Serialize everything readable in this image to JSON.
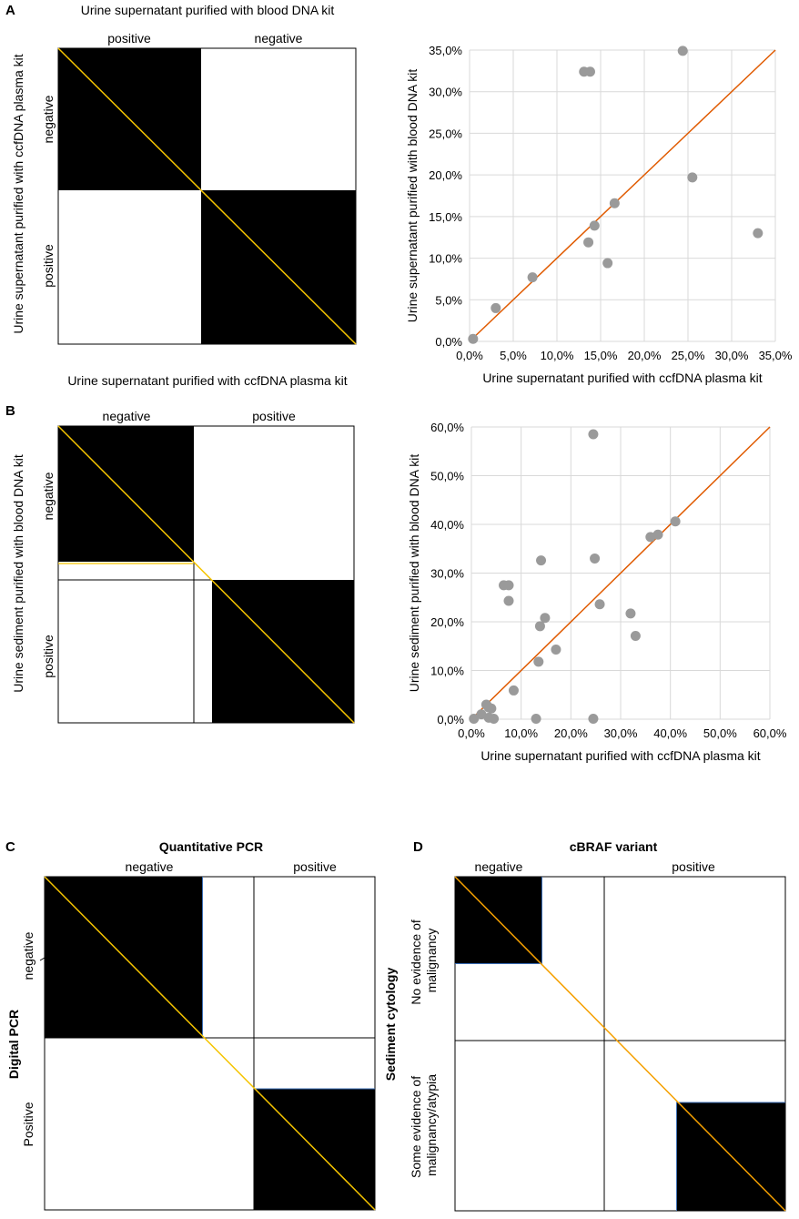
{
  "panels": {
    "A": {
      "letter": "A",
      "mosaic": {
        "title": "Urine supernatant purified with blood DNA kit",
        "col_labels": [
          "positive",
          "negative"
        ],
        "row_labels": [
          "negative",
          "positive"
        ],
        "y_axis_label": "Urine supernatant purified with ccfDNA plasma kit",
        "x_caption": "Urine supernatant purified with ccfDNA plasma kit"
      }
    },
    "B": {
      "letter": "B",
      "mosaic": {
        "col_labels": [
          "negative",
          "positive"
        ],
        "row_labels": [
          "negative",
          "positive"
        ],
        "y_axis_label": "Urine sediment purified with blood DNA kit"
      }
    },
    "C": {
      "letter": "C",
      "mosaic": {
        "title": "Quantitative PCR",
        "col_labels": [
          "negative",
          "positive"
        ],
        "row_labels": [
          "negative",
          "Positive"
        ],
        "y_axis_label": "Digital PCR"
      }
    },
    "D": {
      "letter": "D",
      "mosaic": {
        "title": "cBRAF variant",
        "col_labels": [
          "negative",
          "positive"
        ],
        "row_labels": [
          "No evidence of|malignancy",
          "Some evidence of|malignancy/atypia"
        ],
        "y_axis_label": "Sediment cytology"
      }
    }
  },
  "colors": {
    "fill": "#000000",
    "diagonal_mosaic": "#f5c400",
    "diagonal_scatter": "#e05a00",
    "points": "#9a9a9a",
    "grid": "#d9d9d9",
    "blue_edge": "#3a6db5"
  },
  "chart_data": [
    {
      "type": "scatter",
      "id": "A-scatter",
      "xlabel": "Urine supernatant purified with ccfDNA plasma kit",
      "ylabel": "Urine supernatant purified with blood DNA kit",
      "xlim": [
        0,
        35
      ],
      "ylim": [
        0,
        35
      ],
      "ticks": [
        0,
        5,
        10,
        15,
        20,
        25,
        30,
        35
      ],
      "tick_labels": [
        "0,0%",
        "5,0%",
        "10,0%",
        "15,0%",
        "20,0%",
        "25,0%",
        "30,0%",
        "35,0%"
      ],
      "grid": true,
      "identity_line": true,
      "points": [
        [
          0.4,
          0.3
        ],
        [
          3.0,
          4.0
        ],
        [
          7.2,
          7.7
        ],
        [
          13.1,
          32.4
        ],
        [
          13.8,
          32.4
        ],
        [
          13.6,
          11.9
        ],
        [
          14.3,
          13.9
        ],
        [
          15.8,
          9.4
        ],
        [
          16.6,
          16.6
        ],
        [
          24.4,
          34.9
        ],
        [
          25.5,
          19.7
        ],
        [
          33.0,
          13.0
        ]
      ]
    },
    {
      "type": "scatter",
      "id": "B-scatter",
      "xlabel": "Urine supernatant purified with ccfDNA plasma kit",
      "ylabel": "Urine sediment purified with blood DNA kit",
      "xlim": [
        0,
        60
      ],
      "ylim": [
        0,
        60
      ],
      "ticks": [
        0,
        10,
        20,
        30,
        40,
        50,
        60
      ],
      "tick_labels": [
        "0,0%",
        "10,0%",
        "20,0%",
        "30,0%",
        "40,0%",
        "50,0%",
        "60,0%"
      ],
      "grid": true,
      "identity_line": true,
      "points": [
        [
          0.5,
          0.1
        ],
        [
          2.0,
          1.0
        ],
        [
          3.0,
          3.0
        ],
        [
          3.5,
          2.4
        ],
        [
          3.5,
          0.3
        ],
        [
          4.0,
          2.2
        ],
        [
          4.5,
          0.1
        ],
        [
          6.5,
          27.5
        ],
        [
          7.5,
          27.5
        ],
        [
          7.5,
          24.3
        ],
        [
          8.5,
          5.9
        ],
        [
          13.0,
          0.1
        ],
        [
          13.5,
          11.8
        ],
        [
          13.8,
          19.1
        ],
        [
          14.0,
          32.6
        ],
        [
          14.8,
          20.8
        ],
        [
          17.0,
          14.3
        ],
        [
          24.5,
          58.5
        ],
        [
          24.5,
          0.1
        ],
        [
          24.8,
          33.0
        ],
        [
          25.8,
          23.6
        ],
        [
          32.0,
          21.7
        ],
        [
          33.0,
          17.1
        ],
        [
          36.0,
          37.4
        ],
        [
          37.5,
          37.9
        ],
        [
          41.0,
          40.6
        ]
      ]
    },
    {
      "type": "mosaic",
      "id": "A-mosaic",
      "col_fraction": 0.5,
      "row_fractions": [
        0.5,
        0.5
      ],
      "cells_filled": [
        "top-left",
        "bottom-right"
      ]
    },
    {
      "type": "mosaic",
      "id": "B-mosaic",
      "col_fractions": [
        0.45,
        0.51
      ],
      "row_fractions": [
        0.457,
        0.517
      ]
    },
    {
      "type": "mosaic",
      "id": "C-mosaic",
      "col_fraction": 0.63,
      "fill_fractions_x": [
        0.474,
        0.372
      ],
      "row_fraction": 0.484,
      "fill_fractions_y": [
        0.484,
        0.359
      ]
    },
    {
      "type": "mosaic",
      "id": "D-mosaic",
      "col_fraction": 0.451,
      "fill_fractions_x": [
        0.26,
        0.334
      ],
      "row_fraction": 0.49,
      "fill_fractions_y": [
        0.259,
        0.325
      ]
    }
  ]
}
